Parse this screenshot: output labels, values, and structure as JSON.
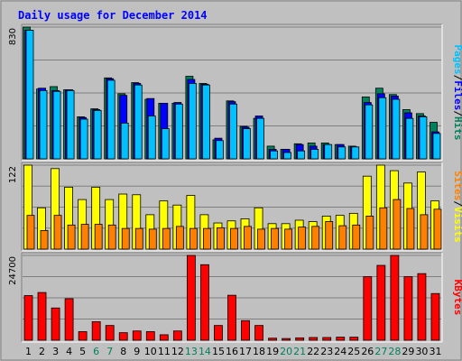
{
  "chart_data": {
    "type": "bar",
    "title": "Daily usage for December 2014",
    "categories": [
      "1",
      "2",
      "3",
      "4",
      "5",
      "6",
      "7",
      "8",
      "9",
      "10",
      "11",
      "12",
      "13",
      "14",
      "15",
      "16",
      "17",
      "18",
      "19",
      "20",
      "21",
      "22",
      "23",
      "24",
      "25",
      "26",
      "27",
      "28",
      "29",
      "30",
      "31"
    ],
    "weekend_days": [
      "6",
      "7",
      "13",
      "14",
      "20",
      "21",
      "27",
      "28"
    ],
    "panels": [
      {
        "id": "top",
        "ymax_label": "830",
        "ylim": [
          0,
          830
        ],
        "series": [
          {
            "name": "Hits",
            "color": "#00805c",
            "values": [
              830,
              440,
              455,
              435,
              265,
              315,
              510,
              410,
              480,
              375,
              350,
              350,
              520,
              475,
              120,
              365,
              205,
              255,
              80,
              60,
              95,
              100,
              100,
              90,
              80,
              390,
              445,
              405,
              310,
              285,
              230
            ]
          },
          {
            "name": "Files",
            "color": "#0000ff",
            "values": [
              810,
              445,
              430,
              435,
              260,
              310,
              505,
              400,
              475,
              380,
              350,
              355,
              500,
              470,
              130,
              360,
              200,
              270,
              60,
              60,
              90,
              80,
              90,
              90,
              75,
              355,
              410,
              395,
              290,
              270,
              170
            ]
          },
          {
            "name": "Pages",
            "color": "#00c0ff",
            "values": [
              810,
              430,
              425,
              430,
              250,
              305,
              495,
              225,
              465,
              270,
              190,
              345,
              475,
              465,
              115,
              345,
              190,
              255,
              50,
              40,
              50,
              60,
              90,
              75,
              75,
              340,
              385,
              375,
              255,
              265,
              160
            ]
          }
        ],
        "labels": [
          {
            "text": "Pages",
            "color": "#00c0ff"
          },
          {
            "text": "/",
            "color": "#000000"
          },
          {
            "text": "Files",
            "color": "#0000ff"
          },
          {
            "text": "/",
            "color": "#000000"
          },
          {
            "text": "Hits",
            "color": "#00805c"
          }
        ]
      },
      {
        "id": "middle",
        "ymax_label": "122",
        "ylim": [
          0,
          122
        ],
        "series": [
          {
            "name": "Visits",
            "color": "#ffff00",
            "values": [
              122,
              60,
              117,
              90,
              72,
              90,
              72,
              80,
              79,
              50,
              70,
              64,
              78,
              50,
              38,
              41,
              44,
              60,
              37,
              37,
              42,
              40,
              48,
              49,
              52,
              106,
              122,
              114,
              96,
              112,
              70
            ]
          },
          {
            "name": "Sites",
            "color": "#ff8000",
            "values": [
              49,
              27,
              49,
              35,
              36,
              36,
              35,
              30,
              30,
              29,
              30,
              33,
              30,
              30,
              31,
              30,
              33,
              29,
              30,
              29,
              32,
              33,
              40,
              34,
              35,
              48,
              60,
              72,
              59,
              50,
              58
            ]
          }
        ],
        "labels": [
          {
            "text": "Sites",
            "color": "#ff8000"
          },
          {
            "text": "/",
            "color": "#000000"
          },
          {
            "text": "Visits",
            "color": "#ffff00"
          }
        ]
      },
      {
        "id": "bottom",
        "ymax_label": "24700",
        "ylim": [
          0,
          24700
        ],
        "series": [
          {
            "name": "KBytes",
            "color": "#ff0000",
            "values": [
              13000,
              13900,
              9400,
              12100,
              2500,
              5400,
              4300,
              2200,
              2700,
              2500,
              1600,
              2700,
              24700,
              22000,
              4300,
              13100,
              5700,
              4300,
              600,
              500,
              700,
              800,
              800,
              900,
              900,
              18500,
              21800,
              24700,
              18500,
              19400,
              13600
            ]
          }
        ],
        "labels": [
          {
            "text": "KBytes",
            "color": "#ff0000"
          }
        ]
      }
    ],
    "grid": true,
    "legend": "right-side vertical"
  },
  "colors": {
    "frame_bg": "#c0c0c0",
    "weekday_label": "#000000",
    "weekend_label": "#00805c"
  }
}
